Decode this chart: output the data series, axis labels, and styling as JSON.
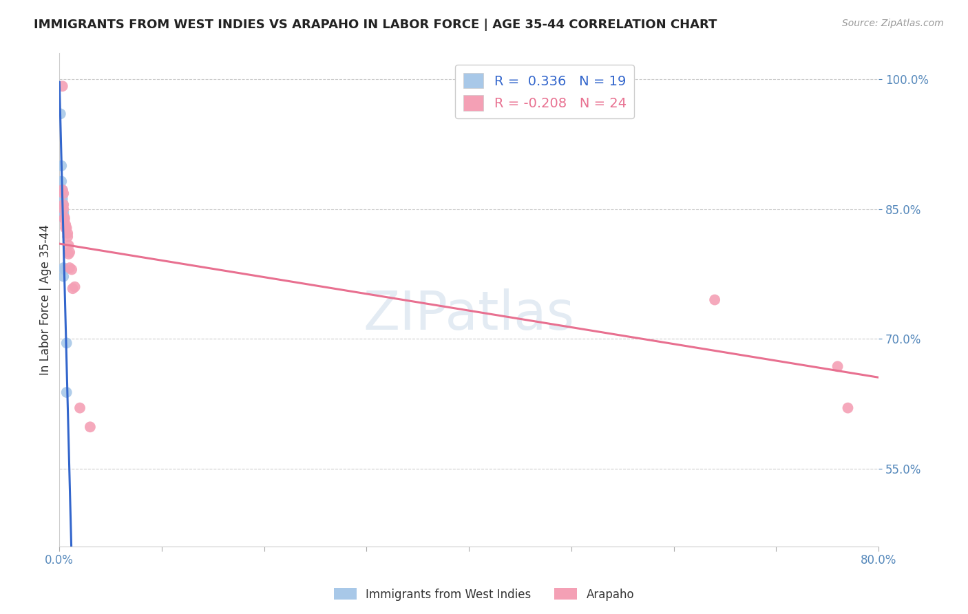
{
  "title": "IMMIGRANTS FROM WEST INDIES VS ARAPAHO IN LABOR FORCE | AGE 35-44 CORRELATION CHART",
  "source": "Source: ZipAtlas.com",
  "ylabel": "In Labor Force | Age 35-44",
  "xlim": [
    0.0,
    0.8
  ],
  "ylim": [
    0.46,
    1.03
  ],
  "yticks": [
    0.55,
    0.7,
    0.85,
    1.0
  ],
  "xticks_shown": [
    0.0,
    0.8
  ],
  "blue_R": 0.336,
  "blue_N": 19,
  "pink_R": -0.208,
  "pink_N": 24,
  "blue_label": "Immigrants from West Indies",
  "pink_label": "Arapaho",
  "blue_color": "#a8c8e8",
  "pink_color": "#f4a0b5",
  "blue_line_color": "#3366cc",
  "pink_line_color": "#e87090",
  "blue_scatter": [
    [
      0.001,
      0.96
    ],
    [
      0.002,
      0.9
    ],
    [
      0.002,
      0.882
    ],
    [
      0.003,
      0.872
    ],
    [
      0.003,
      0.866
    ],
    [
      0.003,
      0.862
    ],
    [
      0.003,
      0.858
    ],
    [
      0.003,
      0.855
    ],
    [
      0.003,
      0.852
    ],
    [
      0.003,
      0.85
    ],
    [
      0.003,
      0.848
    ],
    [
      0.004,
      0.846
    ],
    [
      0.004,
      0.843
    ],
    [
      0.004,
      0.84
    ],
    [
      0.004,
      0.782
    ],
    [
      0.004,
      0.772
    ],
    [
      0.005,
      0.78
    ],
    [
      0.007,
      0.695
    ],
    [
      0.007,
      0.638
    ]
  ],
  "pink_scatter": [
    [
      0.003,
      0.992
    ],
    [
      0.003,
      0.872
    ],
    [
      0.004,
      0.868
    ],
    [
      0.004,
      0.855
    ],
    [
      0.004,
      0.85
    ],
    [
      0.005,
      0.84
    ],
    [
      0.005,
      0.838
    ],
    [
      0.006,
      0.832
    ],
    [
      0.006,
      0.828
    ],
    [
      0.007,
      0.828
    ],
    [
      0.008,
      0.822
    ],
    [
      0.008,
      0.818
    ],
    [
      0.009,
      0.808
    ],
    [
      0.009,
      0.798
    ],
    [
      0.01,
      0.8
    ],
    [
      0.01,
      0.782
    ],
    [
      0.012,
      0.78
    ],
    [
      0.013,
      0.758
    ],
    [
      0.015,
      0.76
    ],
    [
      0.02,
      0.62
    ],
    [
      0.03,
      0.598
    ],
    [
      0.64,
      0.745
    ],
    [
      0.76,
      0.668
    ],
    [
      0.77,
      0.62
    ]
  ],
  "watermark": "ZIPatlas",
  "background_color": "#ffffff",
  "grid_color": "#cccccc",
  "title_fontsize": 13,
  "source_fontsize": 10,
  "tick_fontsize": 12,
  "legend_fontsize": 14
}
